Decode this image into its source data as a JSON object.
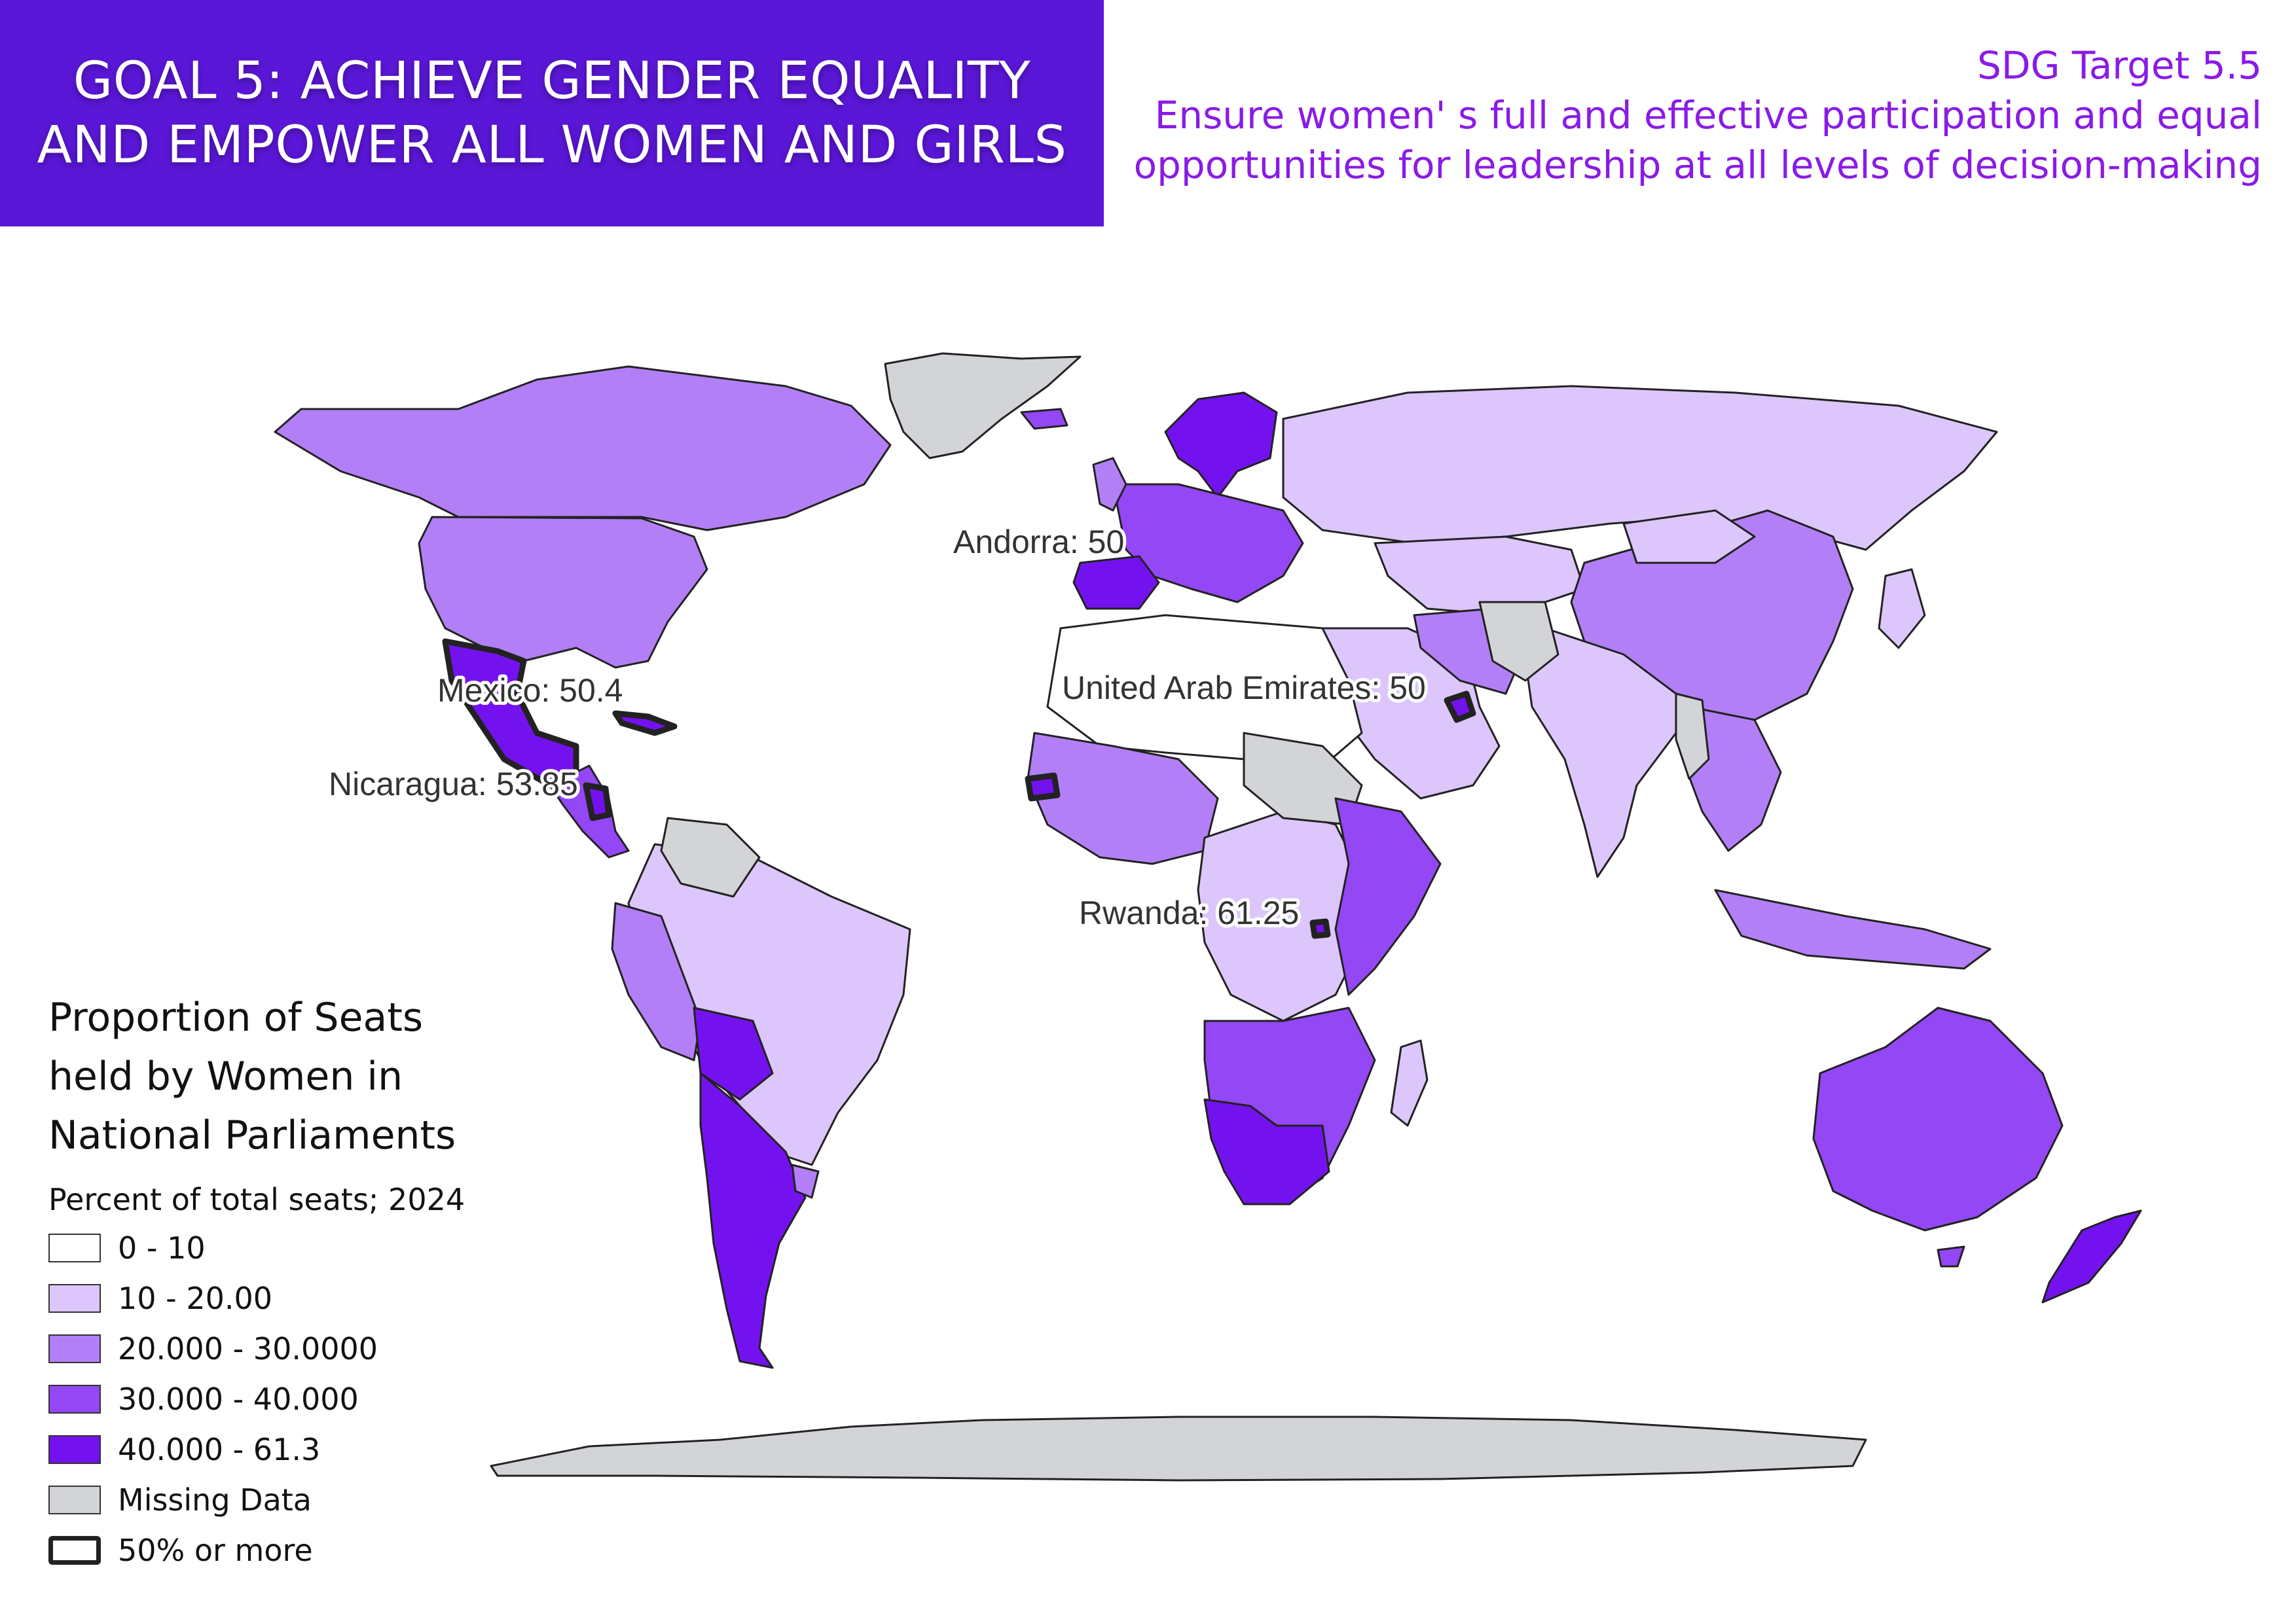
{
  "header": {
    "goal_line1": "GOAL 5: ACHIEVE GENDER EQUALITY",
    "goal_line2": "AND EMPOWER ALL WOMEN AND GIRLS"
  },
  "target": {
    "code": "SDG Target 5.5",
    "line1": "Ensure women' s full and effective participation and equal",
    "line2": "opportunities for leadership at all levels of decision-making"
  },
  "map": {
    "annotations": [
      {
        "name": "Andorra",
        "value": 50,
        "text": "Andorra: 50"
      },
      {
        "name": "Mexico",
        "value": 50.4,
        "text": "Mexico: 50.4"
      },
      {
        "name": "United Arab Emirates",
        "value": 50,
        "text": "United Arab Emirates: 50"
      },
      {
        "name": "Nicaragua",
        "value": 53.85,
        "text": "Nicaragua: 53.85"
      },
      {
        "name": "Rwanda",
        "value": 61.25,
        "text": "Rwanda: 61.25"
      }
    ],
    "colors": {
      "class_0_10": "#ffffff",
      "class_10_20": "#dcc6fb",
      "class_20_30": "#b37ff6",
      "class_30_40": "#9447f4",
      "class_40_613": "#7412ef",
      "missing": "#d3d4d7",
      "outline": "#222222"
    }
  },
  "legend": {
    "title_line1": "Proportion of Seats",
    "title_line2": "held by Women in",
    "title_line3": "National Parliaments",
    "subtitle": "Percent of total seats; 2024",
    "items": [
      {
        "label": "0 - 10",
        "color": "#ffffff"
      },
      {
        "label": "10 - 20.00",
        "color": "#dcc6fb"
      },
      {
        "label": "20.000 - 30.0000",
        "color": "#b37ff6"
      },
      {
        "label": "30.000 - 40.000",
        "color": "#9447f4"
      },
      {
        "label": "40.000 - 61.3",
        "color": "#7412ef"
      },
      {
        "label": "Missing Data",
        "color": "#d3d4d7"
      },
      {
        "label": "50% or more",
        "color": "#ffffff",
        "thick": true
      }
    ]
  }
}
